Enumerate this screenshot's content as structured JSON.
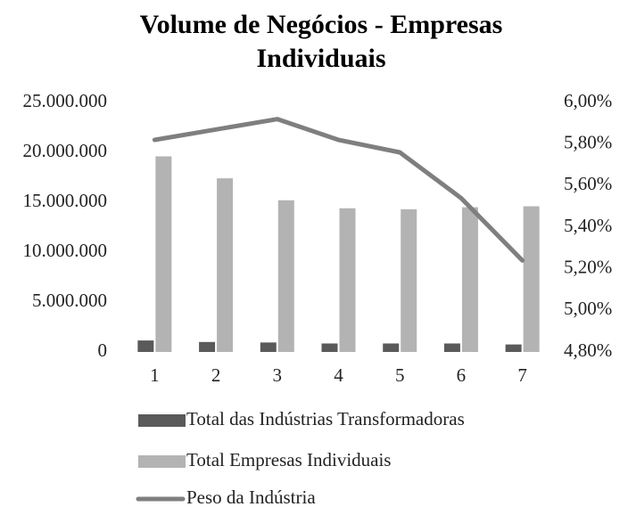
{
  "chart_data": {
    "type": "bar_line",
    "title": [
      "Volume de Negócios - Empresas",
      "Individuais"
    ],
    "categories": [
      "1",
      "2",
      "3",
      "4",
      "5",
      "6",
      "7"
    ],
    "series": [
      {
        "name": "Total das Indústrias Transformadoras",
        "color": "#5a5a5a",
        "type": "bar",
        "values": [
          1150000,
          1000000,
          950000,
          850000,
          850000,
          850000,
          750000
        ]
      },
      {
        "name": "Total Empresas Individuais",
        "color": "#b3b3b3",
        "type": "bar",
        "values": [
          19600000,
          17400000,
          15200000,
          14400000,
          14300000,
          14500000,
          14600000
        ]
      },
      {
        "name": "Peso da Indústria",
        "color": "#7f7f7f",
        "type": "line",
        "axis": "y2",
        "values": [
          5.82,
          5.87,
          5.92,
          5.82,
          5.76,
          5.54,
          5.24
        ]
      }
    ],
    "ylim": [
      0,
      25000000
    ],
    "yticks": [
      0,
      {
        "value": 5000000,
        "label": "5.000.000"
      },
      {
        "value": 10000000,
        "label": "10.000.000"
      },
      {
        "value": 15000000,
        "label": "15.000.000"
      },
      {
        "value": 20000000,
        "label": "20.000.000"
      },
      {
        "value": 25000000,
        "label": "25.000.000"
      }
    ],
    "y2lim": [
      4.8,
      6.0
    ],
    "y2ticks": [
      {
        "value": 4.8,
        "label": "4,80%"
      },
      {
        "value": 5.0,
        "label": "5,00%"
      },
      {
        "value": 5.2,
        "label": "5,20%"
      },
      {
        "value": 5.4,
        "label": "5,40%"
      },
      {
        "value": 5.6,
        "label": "5,60%"
      },
      {
        "value": 5.8,
        "label": "5,80%"
      },
      {
        "value": 6.0,
        "label": "6,00%"
      }
    ],
    "grid": false,
    "legend": "bottom"
  }
}
